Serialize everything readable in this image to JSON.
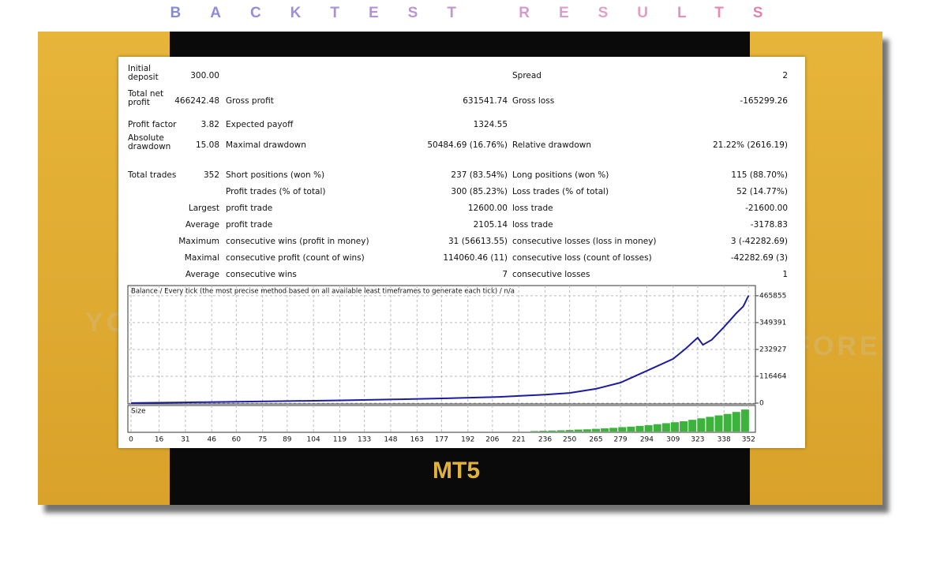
{
  "header": {
    "title": "BACKTEST RESULTS"
  },
  "logo": "MT5",
  "watermark": "YOFOREX",
  "table": {
    "rows": [
      [
        "Initial deposit",
        "300.00",
        null,
        null,
        "Spread",
        "2"
      ],
      [
        "Total net profit",
        "466242.48",
        "Gross profit",
        "631541.74",
        "Gross loss",
        "-165299.26"
      ],
      [
        "Profit factor",
        "3.82",
        "Expected payoff",
        "1324.55",
        null,
        null
      ],
      [
        "Absolute drawdown",
        "15.08",
        "Maximal drawdown",
        "50484.69 (16.76%)",
        "Relative drawdown",
        "21.22% (2616.19)"
      ],
      [
        "Total trades",
        "352",
        "Short positions (won %)",
        "237 (83.54%)",
        "Long positions (won %)",
        "115 (88.70%)"
      ],
      [
        null,
        null,
        "Profit trades (% of total)",
        "300 (85.23%)",
        "Loss trades (% of total)",
        "52 (14.77%)"
      ],
      [
        null,
        "Largest",
        "profit trade",
        "12600.00",
        "loss trade",
        "-21600.00"
      ],
      [
        null,
        "Average",
        "profit trade",
        "2105.14",
        "loss trade",
        "-3178.83"
      ],
      [
        null,
        "Maximum",
        "consecutive wins (profit in money)",
        "31 (56613.55)",
        "consecutive losses (loss in money)",
        "3 (-42282.69)"
      ],
      [
        null,
        "Maximal",
        "consecutive profit (count of wins)",
        "114060.46 (11)",
        "consecutive loss (count of losses)",
        "-42282.69 (3)"
      ],
      [
        null,
        "Average",
        "consecutive wins",
        "7",
        "consecutive losses",
        "1"
      ]
    ]
  },
  "chart_data": {
    "type": "line",
    "title": "Balance / Every tick (the most precise method based on all available least timeframes to generate each tick) / n/a",
    "x": [
      0,
      30,
      60,
      90,
      120,
      150,
      180,
      210,
      221,
      236,
      250,
      265,
      279,
      294,
      309,
      316,
      323,
      326,
      331,
      338,
      345,
      349,
      352
    ],
    "series": [
      {
        "name": "Balance",
        "color": "#1c1c9e",
        "values": [
          300,
          3000,
          6000,
          9000,
          12000,
          16000,
          21000,
          27000,
          31000,
          37000,
          44000,
          62000,
          89000,
          140000,
          192000,
          235000,
          284000,
          253000,
          275000,
          330000,
          390000,
          420000,
          466542
        ]
      }
    ],
    "xlim": [
      0,
      355
    ],
    "xticks": [
      0,
      16,
      31,
      46,
      60,
      75,
      89,
      104,
      119,
      133,
      148,
      163,
      177,
      192,
      206,
      221,
      236,
      250,
      265,
      279,
      294,
      309,
      323,
      338,
      352
    ],
    "ylim": [
      0,
      510000
    ],
    "yticks": [
      0,
      116464,
      232927,
      349391,
      465855
    ],
    "grid": true,
    "size": {
      "label": "Size",
      "color": "#3cb43c",
      "ylim": [
        0,
        100
      ],
      "x": [
        230,
        235,
        240,
        245,
        250,
        255,
        260,
        265,
        270,
        275,
        280,
        285,
        290,
        295,
        300,
        305,
        310,
        315,
        320,
        325,
        330,
        335,
        340,
        345,
        350
      ],
      "values": [
        2,
        3,
        4,
        5,
        6,
        8,
        9,
        11,
        13,
        15,
        18,
        20,
        23,
        26,
        30,
        34,
        38,
        42,
        48,
        54,
        60,
        66,
        72,
        80,
        90
      ]
    }
  }
}
